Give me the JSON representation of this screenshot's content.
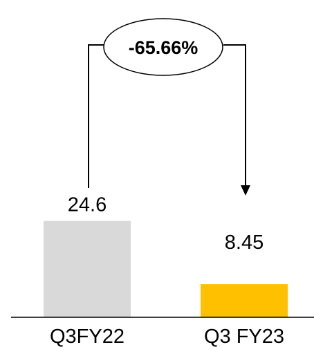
{
  "chart_data": {
    "type": "bar",
    "categories": [
      "Q3FY22",
      "Q3 FY23"
    ],
    "values": [
      24.6,
      8.45
    ],
    "value_labels": [
      "24.6",
      "8.45"
    ],
    "colors": [
      "#d9d9d9",
      "#ffc000"
    ],
    "change_label": "-65.66%",
    "ylim": [
      0,
      60
    ],
    "grid": false,
    "legend": "none"
  }
}
